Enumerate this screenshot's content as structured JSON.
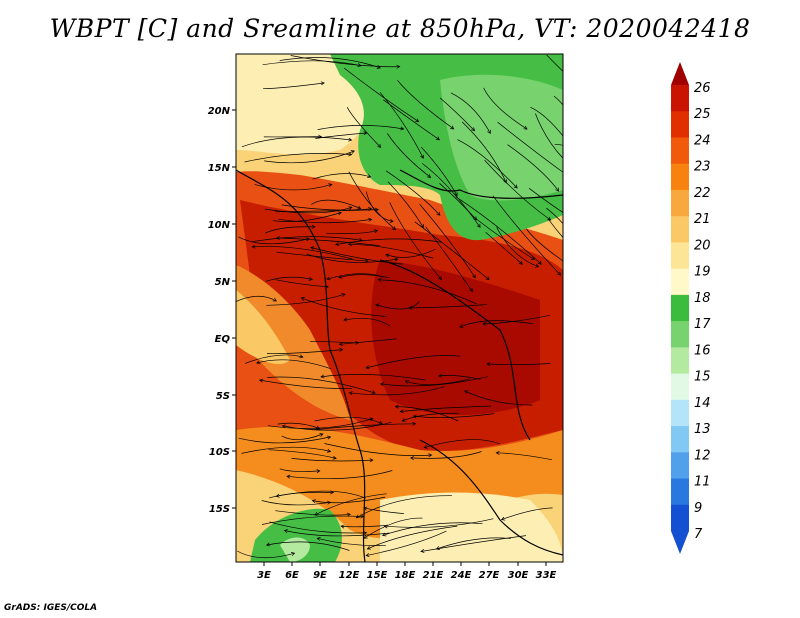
{
  "title": "WBPT [C] and Sreamline at 850hPa, VT: 2020042418",
  "credit": "GrADS: IGES/COLA",
  "lat_labels": [
    "20N",
    "15N",
    "10N",
    "5N",
    "EQ",
    "5S",
    "10S",
    "15S"
  ],
  "lon_labels": [
    "3E",
    "6E",
    "9E",
    "12E",
    "15E",
    "18E",
    "21E",
    "24E",
    "27E",
    "30E",
    "33E"
  ],
  "colorbar": {
    "labels": [
      "26",
      "25",
      "24",
      "23",
      "22",
      "21",
      "20",
      "19",
      "18",
      "17",
      "16",
      "15",
      "14",
      "13",
      "12",
      "11",
      "9",
      "7"
    ],
    "colors": [
      "#a00000",
      "#c81400",
      "#e03000",
      "#f05a0a",
      "#f8820f",
      "#f8a83c",
      "#fac864",
      "#fce696",
      "#fff8c8",
      "#3cbc3c",
      "#78d26e",
      "#b4eaa0",
      "#e1fae6",
      "#b4e4fa",
      "#82c8f5",
      "#50a0ec",
      "#2878e0",
      "#1450d2"
    ]
  },
  "colors": {
    "hot": "#c81e00",
    "warm": "#e6400a",
    "orange": "#f58c1e",
    "yellow": "#fad278",
    "pale": "#fdefb4",
    "green": "#46be46",
    "lightgreen": "#8cd782"
  }
}
